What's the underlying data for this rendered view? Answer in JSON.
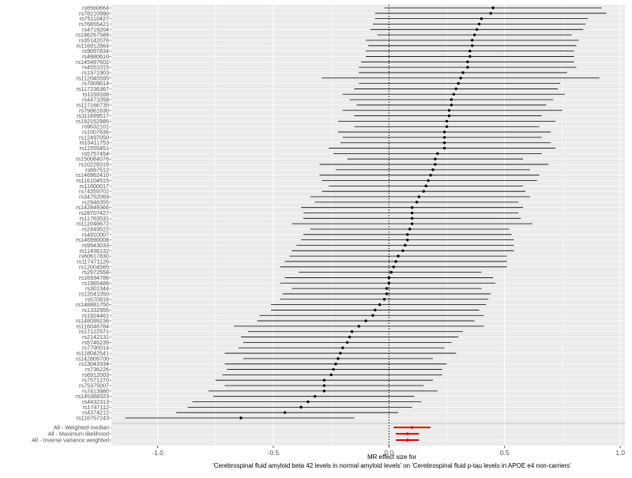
{
  "chart_data": {
    "type": "forest",
    "title": "",
    "xlabel_lines": [
      "MR effect size for",
      "'Cerebrospinal fluid amyloid beta 42 levels in normal amyloid levels' on 'Cerebrospinal fluid p-tau levels in APOE e4 non-carriers'"
    ],
    "ylabel": "",
    "xlim": [
      -1.2,
      1.02
    ],
    "x_ticks": [
      -1.0,
      -0.5,
      0.0,
      0.5,
      1.0
    ],
    "x_tick_labels": [
      "-1.0",
      "-0.5",
      "0.0",
      "0.5",
      "1.0"
    ],
    "reference_line": 0,
    "grid": true,
    "background_color": "#ebebeb",
    "grid_color": "#ffffff",
    "snp_color": "#000000",
    "summary_color": "#e60000",
    "snps": [
      {
        "label": "rs6560664",
        "est": 0.45,
        "lo": -0.02,
        "hi": 0.92
      },
      {
        "label": "rs78210990",
        "est": 0.44,
        "lo": -0.06,
        "hi": 0.94
      },
      {
        "label": "rs75110427",
        "est": 0.4,
        "lo": -0.06,
        "hi": 0.86
      },
      {
        "label": "rs76655421",
        "est": 0.39,
        "lo": -0.07,
        "hi": 0.85
      },
      {
        "label": "rs4719204",
        "est": 0.38,
        "lo": -0.08,
        "hi": 0.84
      },
      {
        "label": "rs186267588",
        "est": 0.37,
        "lo": -0.05,
        "hi": 0.79
      },
      {
        "label": "rs35142076",
        "est": 0.36,
        "lo": -0.1,
        "hi": 0.82
      },
      {
        "label": "rs116912864",
        "est": 0.36,
        "lo": -0.09,
        "hi": 0.81
      },
      {
        "label": "rs9097834",
        "est": 0.35,
        "lo": -0.1,
        "hi": 0.8
      },
      {
        "label": "rs4880610",
        "est": 0.35,
        "lo": -0.1,
        "hi": 0.8
      },
      {
        "label": "rs145487602",
        "est": 0.34,
        "lo": -0.12,
        "hi": 0.8
      },
      {
        "label": "rs4551015",
        "est": 0.34,
        "lo": -0.13,
        "hi": 0.81
      },
      {
        "label": "rs1971903",
        "est": 0.32,
        "lo": -0.13,
        "hi": 0.77
      },
      {
        "label": "rs112045595",
        "est": 0.31,
        "lo": -0.29,
        "hi": 0.91
      },
      {
        "label": "rs7009614",
        "est": 0.3,
        "lo": -0.13,
        "hi": 0.74
      },
      {
        "label": "rs117236367",
        "est": 0.29,
        "lo": -0.15,
        "hi": 0.73
      },
      {
        "label": "rs1159168",
        "est": 0.28,
        "lo": -0.2,
        "hi": 0.76
      },
      {
        "label": "rs4471058",
        "est": 0.27,
        "lo": -0.17,
        "hi": 0.71
      },
      {
        "label": "rs117166735",
        "est": 0.27,
        "lo": -0.14,
        "hi": 0.68
      },
      {
        "label": "rs79861630",
        "est": 0.26,
        "lo": -0.2,
        "hi": 0.75
      },
      {
        "label": "rs111899517",
        "est": 0.26,
        "lo": -0.15,
        "hi": 0.66
      },
      {
        "label": "rs192152985",
        "est": 0.25,
        "lo": -0.22,
        "hi": 0.72
      },
      {
        "label": "rs9032101",
        "est": 0.25,
        "lo": -0.15,
        "hi": 0.65
      },
      {
        "label": "rs1007636",
        "est": 0.24,
        "lo": -0.22,
        "hi": 0.7
      },
      {
        "label": "rs12497050",
        "est": 0.24,
        "lo": -0.2,
        "hi": 0.66
      },
      {
        "label": "rs10411753",
        "est": 0.24,
        "lo": -0.21,
        "hi": 0.7
      },
      {
        "label": "rs11555451",
        "est": 0.24,
        "lo": -0.26,
        "hi": 0.72
      },
      {
        "label": "rs5757454",
        "est": 0.21,
        "lo": -0.24,
        "hi": 0.66
      },
      {
        "label": "rs150084076",
        "est": 0.2,
        "lo": -0.18,
        "hi": 0.58
      },
      {
        "label": "rs10228318",
        "est": 0.2,
        "lo": -0.3,
        "hi": 0.69
      },
      {
        "label": "rs697512",
        "est": 0.19,
        "lo": -0.23,
        "hi": 0.61
      },
      {
        "label": "rs146962410",
        "est": 0.18,
        "lo": -0.3,
        "hi": 0.65
      },
      {
        "label": "rs116104515",
        "est": 0.17,
        "lo": -0.29,
        "hi": 0.64
      },
      {
        "label": "rs11600017",
        "est": 0.16,
        "lo": -0.26,
        "hi": 0.58
      },
      {
        "label": "rs74359702",
        "est": 0.15,
        "lo": -0.29,
        "hi": 0.59
      },
      {
        "label": "rs34752069",
        "est": 0.13,
        "lo": -0.34,
        "hi": 0.61
      },
      {
        "label": "rs2946355",
        "est": 0.12,
        "lo": -0.32,
        "hi": 0.56
      },
      {
        "label": "rs142849366",
        "est": 0.1,
        "lo": -0.38,
        "hi": 0.58
      },
      {
        "label": "rs28707427",
        "est": 0.1,
        "lo": -0.37,
        "hi": 0.56
      },
      {
        "label": "rs11763531",
        "est": 0.1,
        "lo": -0.37,
        "hi": 0.57
      },
      {
        "label": "rs112046672",
        "est": 0.1,
        "lo": -0.42,
        "hi": 0.62
      },
      {
        "label": "rs2449522",
        "est": 0.09,
        "lo": -0.34,
        "hi": 0.52
      },
      {
        "label": "rs4910007",
        "est": 0.08,
        "lo": -0.37,
        "hi": 0.53
      },
      {
        "label": "rs146990008",
        "est": 0.08,
        "lo": -0.38,
        "hi": 0.54
      },
      {
        "label": "rs9543033",
        "est": 0.07,
        "lo": -0.4,
        "hi": 0.54
      },
      {
        "label": "rs11436132",
        "est": 0.06,
        "lo": -0.42,
        "hi": 0.54
      },
      {
        "label": "rs60617830",
        "est": 0.04,
        "lo": -0.43,
        "hi": 0.51
      },
      {
        "label": "rs117471126",
        "est": 0.03,
        "lo": -0.45,
        "hi": 0.51
      },
      {
        "label": "rs12004565",
        "est": 0.02,
        "lo": -0.47,
        "hi": 0.51
      },
      {
        "label": "rs2972558",
        "est": 0.01,
        "lo": -0.39,
        "hi": 0.4
      },
      {
        "label": "rs16934786",
        "est": 0.0,
        "lo": -0.45,
        "hi": 0.45
      },
      {
        "label": "rs1965488",
        "est": 0.0,
        "lo": -0.47,
        "hi": 0.46
      },
      {
        "label": "rs301344",
        "est": -0.01,
        "lo": -0.42,
        "hi": 0.4
      },
      {
        "label": "rs12041050",
        "est": -0.01,
        "lo": -0.46,
        "hi": 0.44
      },
      {
        "label": "rs570916",
        "est": -0.02,
        "lo": -0.47,
        "hi": 0.43
      },
      {
        "label": "rs148881750",
        "est": -0.04,
        "lo": -0.51,
        "hi": 0.42
      },
      {
        "label": "rs1332955",
        "est": -0.06,
        "lo": -0.51,
        "hi": 0.39
      },
      {
        "label": "rs1924461",
        "est": -0.07,
        "lo": -0.56,
        "hi": 0.41
      },
      {
        "label": "rs148099236",
        "est": -0.1,
        "lo": -0.57,
        "hi": 0.37
      },
      {
        "label": "rs116046784",
        "est": -0.13,
        "lo": -0.67,
        "hi": 0.41
      },
      {
        "label": "rs17122571",
        "est": -0.16,
        "lo": -0.61,
        "hi": 0.32
      },
      {
        "label": "rs2142131",
        "est": -0.17,
        "lo": -0.64,
        "hi": 0.3
      },
      {
        "label": "rs5746235",
        "est": -0.18,
        "lo": -0.63,
        "hi": 0.27
      },
      {
        "label": "rs7790014",
        "est": -0.2,
        "lo": -0.65,
        "hi": 0.24
      },
      {
        "label": "rs118042541",
        "est": -0.21,
        "lo": -0.71,
        "hi": 0.29
      },
      {
        "label": "rs142809700",
        "est": -0.22,
        "lo": -0.63,
        "hi": 0.19
      },
      {
        "label": "rs13043334",
        "est": -0.23,
        "lo": -0.71,
        "hi": 0.25
      },
      {
        "label": "rs736226",
        "est": -0.24,
        "lo": -0.7,
        "hi": 0.23
      },
      {
        "label": "rs6912003",
        "est": -0.25,
        "lo": -0.72,
        "hi": 0.23
      },
      {
        "label": "rs7571270",
        "est": -0.28,
        "lo": -0.75,
        "hi": 0.19
      },
      {
        "label": "rs75375007",
        "est": -0.28,
        "lo": -0.71,
        "hi": 0.15
      },
      {
        "label": "rs7413980",
        "est": -0.28,
        "lo": -0.78,
        "hi": 0.21
      },
      {
        "label": "rs145368323",
        "est": -0.32,
        "lo": -0.76,
        "hi": 0.11
      },
      {
        "label": "rs4432313",
        "est": -0.35,
        "lo": -0.85,
        "hi": 0.14
      },
      {
        "label": "rs1747112",
        "est": -0.38,
        "lo": -0.87,
        "hi": 0.1
      },
      {
        "label": "rs4374212",
        "est": -0.45,
        "lo": -0.92,
        "hi": 0.04
      },
      {
        "label": "rs116757243",
        "est": -0.64,
        "lo": -1.14,
        "hi": -0.15
      }
    ],
    "summaries": [
      {
        "label": "All - Weighted median",
        "est": 0.1,
        "lo": 0.02,
        "hi": 0.18
      },
      {
        "label": "All - Maximum likelihood",
        "est": 0.08,
        "lo": 0.03,
        "hi": 0.13
      },
      {
        "label": "All - Inverse variance weighted",
        "est": 0.08,
        "lo": 0.03,
        "hi": 0.13
      }
    ]
  }
}
